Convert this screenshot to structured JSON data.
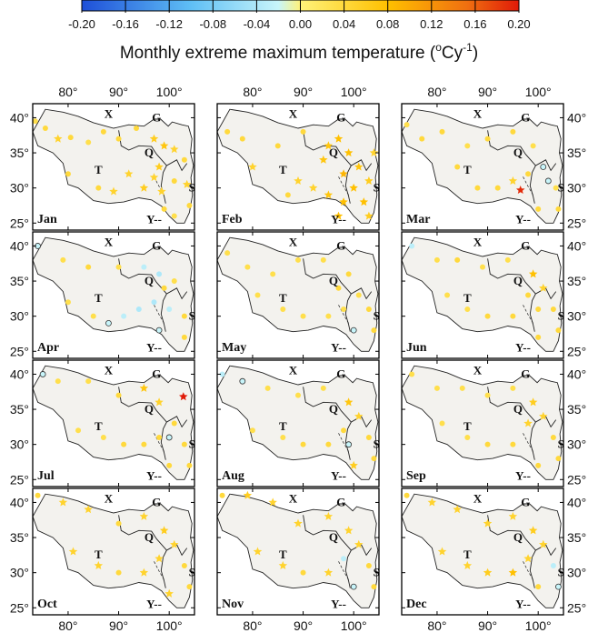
{
  "colorbar": {
    "ticks": [
      "-0.20",
      "-0.16",
      "-0.12",
      "-0.08",
      "-0.04",
      "0.00",
      "0.04",
      "0.08",
      "0.12",
      "0.16",
      "0.20"
    ],
    "colors": [
      "#1e4fd8",
      "#3a86f0",
      "#5fbff5",
      "#8ee0f7",
      "#c8f5fa",
      "#fff27a",
      "#ffd21f",
      "#ffb000",
      "#f58a10",
      "#ef4a0a",
      "#e01a08"
    ]
  },
  "title": {
    "main": "Monthly extreme maximum temperature (",
    "sup1": "o",
    "cy": "Cy",
    "sup2": "-1",
    "close": ")"
  },
  "axis": {
    "lon_ticks": [
      "80°",
      "90°",
      "100°"
    ],
    "lat_ticks": [
      "40°",
      "35°",
      "30°",
      "25°"
    ]
  },
  "regions": {
    "X": "X",
    "G": "G",
    "Q": "Q",
    "T": "T",
    "S": "S",
    "Y": "Y--"
  },
  "chart_data": {
    "type": "scatter",
    "title": "Monthly extreme maximum temperature (oCy-1)",
    "colorbar_range": [
      -0.2,
      0.2
    ],
    "lon_range": [
      73,
      105
    ],
    "lat_range": [
      24,
      42
    ],
    "months": [
      {
        "label": "Jan",
        "points": [
          [
            73.5,
            39.5,
            0.03
          ],
          [
            75.5,
            38.5,
            0.04
          ],
          [
            78,
            37,
            0.05
          ],
          [
            80.5,
            37.2,
            0.04
          ],
          [
            84,
            36.5,
            0.03
          ],
          [
            87,
            38,
            0.04
          ],
          [
            90,
            37,
            0.04
          ],
          [
            93.5,
            38.5,
            0.04
          ],
          [
            97,
            37,
            0.06
          ],
          [
            99,
            36,
            0.07
          ],
          [
            98,
            33,
            0.06
          ],
          [
            101,
            35.5,
            0.05
          ],
          [
            103,
            34,
            0.04
          ],
          [
            101,
            31,
            0.04
          ],
          [
            98.5,
            29.5,
            0.05
          ],
          [
            103.5,
            30.5,
            0.05
          ],
          [
            104,
            27.5,
            0.04
          ],
          [
            101,
            26,
            0.03
          ],
          [
            92,
            32,
            0.05
          ],
          [
            89,
            29.5,
            0.05
          ],
          [
            86,
            30,
            0.04
          ],
          [
            95,
            30,
            0.06
          ],
          [
            97,
            31.5,
            0.05
          ],
          [
            99,
            27,
            0.04
          ],
          [
            80,
            32,
            0.04
          ]
        ]
      },
      {
        "label": "Feb",
        "points": [
          [
            75,
            38,
            0.04
          ],
          [
            78,
            37,
            0.04
          ],
          [
            80,
            33,
            0.05
          ],
          [
            85,
            36,
            0.04
          ],
          [
            90,
            38,
            0.04
          ],
          [
            95,
            36,
            0.07
          ],
          [
            97,
            37,
            0.08
          ],
          [
            99,
            35,
            0.08
          ],
          [
            101,
            33,
            0.07
          ],
          [
            98,
            32,
            0.09
          ],
          [
            100,
            30,
            0.08
          ],
          [
            103,
            31,
            0.06
          ],
          [
            102,
            28,
            0.08
          ],
          [
            98,
            28,
            0.08
          ],
          [
            95,
            29,
            0.07
          ],
          [
            92,
            30,
            0.05
          ],
          [
            89,
            31,
            0.05
          ],
          [
            104,
            35,
            0.05
          ],
          [
            103,
            26,
            0.06
          ],
          [
            97,
            26,
            0.08
          ],
          [
            87,
            29,
            0.04
          ],
          [
            94,
            34,
            0.07
          ]
        ]
      },
      {
        "label": "Mar",
        "points": [
          [
            74,
            39,
            0.03
          ],
          [
            77,
            37,
            0.04
          ],
          [
            81,
            38,
            0.04
          ],
          [
            86,
            36,
            0.03
          ],
          [
            90,
            37,
            0.04
          ],
          [
            95,
            38,
            0.04
          ],
          [
            99,
            36,
            0.03
          ],
          [
            101,
            33,
            -0.02
          ],
          [
            102,
            31,
            -0.02
          ],
          [
            98,
            32,
            0.04
          ],
          [
            96.5,
            29.7,
            0.19
          ],
          [
            103.5,
            30,
            0.03
          ],
          [
            104,
            27,
            0.04
          ],
          [
            100,
            27,
            0.04
          ],
          [
            92,
            30,
            0.04
          ],
          [
            88,
            30,
            0.04
          ],
          [
            95,
            31,
            0.05
          ],
          [
            84,
            33,
            0.04
          ]
        ]
      },
      {
        "label": "Apr",
        "points": [
          [
            74,
            40,
            -0.02
          ],
          [
            79,
            38,
            0.03
          ],
          [
            84,
            37,
            0.04
          ],
          [
            90,
            37,
            0.03
          ],
          [
            95,
            37,
            -0.03
          ],
          [
            98,
            36,
            -0.04
          ],
          [
            101,
            35,
            0.03
          ],
          [
            97,
            32,
            -0.04
          ],
          [
            94,
            31,
            -0.04
          ],
          [
            91,
            30,
            -0.03
          ],
          [
            100,
            31,
            -0.03
          ],
          [
            103,
            30,
            0.04
          ],
          [
            103,
            27,
            0.04
          ],
          [
            98,
            28,
            -0.02
          ],
          [
            88,
            29,
            -0.02
          ],
          [
            85,
            30,
            0.03
          ],
          [
            80,
            32,
            0.03
          ],
          [
            99,
            34,
            0.04
          ]
        ]
      },
      {
        "label": "May",
        "points": [
          [
            75,
            39,
            0.03
          ],
          [
            79,
            37,
            0.03
          ],
          [
            84,
            36,
            0.03
          ],
          [
            89,
            38,
            0.03
          ],
          [
            94,
            38,
            0.03
          ],
          [
            99,
            36,
            0.04
          ],
          [
            101,
            33,
            0.03
          ],
          [
            98,
            31,
            0.03
          ],
          [
            103,
            31,
            0.04
          ],
          [
            104,
            28,
            0.04
          ],
          [
            100,
            28,
            -0.02
          ],
          [
            95,
            30,
            0.03
          ],
          [
            90,
            30,
            0.03
          ],
          [
            86,
            31,
            0.03
          ],
          [
            81,
            33,
            0.03
          ],
          [
            97,
            34,
            0.04
          ]
        ]
      },
      {
        "label": "Jun",
        "points": [
          [
            75,
            40,
            -0.03
          ],
          [
            80,
            38,
            0.03
          ],
          [
            84,
            38,
            0.04
          ],
          [
            89,
            37,
            0.03
          ],
          [
            94,
            38,
            0.03
          ],
          [
            99,
            36,
            0.08
          ],
          [
            101,
            34,
            0.05
          ],
          [
            98,
            33,
            0.04
          ],
          [
            103,
            31,
            0.04
          ],
          [
            104,
            28,
            0.04
          ],
          [
            100,
            27,
            0.04
          ],
          [
            95,
            30,
            0.04
          ],
          [
            90,
            30,
            0.04
          ],
          [
            86,
            31,
            0.03
          ],
          [
            82,
            33,
            0.03
          ],
          [
            100,
            31,
            0.04
          ]
        ]
      },
      {
        "label": "Jul",
        "points": [
          [
            75,
            40,
            -0.02
          ],
          [
            78,
            39,
            0.03
          ],
          [
            84,
            39,
            0.03
          ],
          [
            90,
            37,
            0.04
          ],
          [
            95,
            38,
            0.07
          ],
          [
            98,
            36,
            0.05
          ],
          [
            102.8,
            36.8,
            0.2
          ],
          [
            101,
            33,
            0.04
          ],
          [
            98,
            31,
            0.04
          ],
          [
            103,
            30,
            0.04
          ],
          [
            104,
            27,
            0.04
          ],
          [
            100,
            27,
            0.04
          ],
          [
            95,
            30,
            0.04
          ],
          [
            91,
            30,
            0.04
          ],
          [
            87,
            31,
            0.03
          ],
          [
            82,
            32,
            0.03
          ],
          [
            100,
            31,
            -0.02
          ]
        ]
      },
      {
        "label": "Aug",
        "points": [
          [
            74,
            40,
            -0.03
          ],
          [
            78,
            39,
            -0.02
          ],
          [
            83,
            38,
            0.03
          ],
          [
            89,
            37,
            0.03
          ],
          [
            94,
            38,
            0.03
          ],
          [
            99,
            36,
            0.07
          ],
          [
            101,
            34,
            0.05
          ],
          [
            98,
            32,
            0.04
          ],
          [
            103,
            31,
            0.04
          ],
          [
            104,
            28,
            0.04
          ],
          [
            100,
            27,
            0.06
          ],
          [
            95,
            30,
            0.04
          ],
          [
            90,
            30,
            0.04
          ],
          [
            86,
            31,
            0.03
          ],
          [
            80,
            32,
            0.03
          ],
          [
            99,
            30,
            -0.02
          ]
        ]
      },
      {
        "label": "Sep",
        "points": [
          [
            75,
            40,
            0.03
          ],
          [
            80,
            38,
            0.03
          ],
          [
            85,
            38,
            0.03
          ],
          [
            90,
            37,
            0.03
          ],
          [
            95,
            38,
            0.03
          ],
          [
            99,
            36,
            0.06
          ],
          [
            101,
            34,
            0.05
          ],
          [
            98,
            33,
            0.05
          ],
          [
            103,
            31,
            0.04
          ],
          [
            104,
            28,
            0.04
          ],
          [
            100,
            27,
            0.04
          ],
          [
            95,
            30,
            0.04
          ],
          [
            90,
            30,
            0.04
          ],
          [
            86,
            31,
            0.03
          ],
          [
            81,
            33,
            0.03
          ]
        ]
      },
      {
        "label": "Oct",
        "points": [
          [
            74,
            41,
            0.04
          ],
          [
            79,
            40,
            0.05
          ],
          [
            84,
            39,
            0.05
          ],
          [
            90,
            37,
            0.04
          ],
          [
            95,
            38,
            0.05
          ],
          [
            99,
            36,
            0.06
          ],
          [
            101,
            34,
            0.05
          ],
          [
            98,
            32,
            0.05
          ],
          [
            103,
            31,
            0.04
          ],
          [
            104,
            28,
            0.04
          ],
          [
            100,
            27,
            0.05
          ],
          [
            95,
            30,
            0.05
          ],
          [
            90,
            30,
            0.04
          ],
          [
            86,
            31,
            0.05
          ],
          [
            81,
            33,
            0.05
          ]
        ]
      },
      {
        "label": "Nov",
        "points": [
          [
            74,
            41,
            0.04
          ],
          [
            79,
            41,
            0.06
          ],
          [
            84,
            40,
            0.05
          ],
          [
            89,
            37,
            0.05
          ],
          [
            95,
            38,
            0.05
          ],
          [
            99,
            36,
            0.05
          ],
          [
            101,
            34,
            0.05
          ],
          [
            98,
            32,
            -0.03
          ],
          [
            103,
            31,
            0.04
          ],
          [
            104,
            28,
            0.04
          ],
          [
            100,
            28,
            -0.02
          ],
          [
            95,
            30,
            0.05
          ],
          [
            90,
            30,
            0.04
          ],
          [
            86,
            31,
            0.05
          ],
          [
            81,
            33,
            0.05
          ]
        ]
      },
      {
        "label": "Dec",
        "points": [
          [
            74,
            41,
            0.04
          ],
          [
            79,
            40,
            0.05
          ],
          [
            84,
            39,
            0.05
          ],
          [
            90,
            37,
            0.05
          ],
          [
            95,
            38,
            0.05
          ],
          [
            99,
            36,
            0.06
          ],
          [
            101,
            34,
            0.05
          ],
          [
            98,
            32,
            0.05
          ],
          [
            103,
            31,
            -0.03
          ],
          [
            104,
            28,
            -0.02
          ],
          [
            100,
            28,
            0.04
          ],
          [
            95,
            30,
            0.08
          ],
          [
            90,
            30,
            0.06
          ],
          [
            86,
            31,
            0.05
          ],
          [
            81,
            33,
            0.05
          ]
        ]
      }
    ]
  }
}
